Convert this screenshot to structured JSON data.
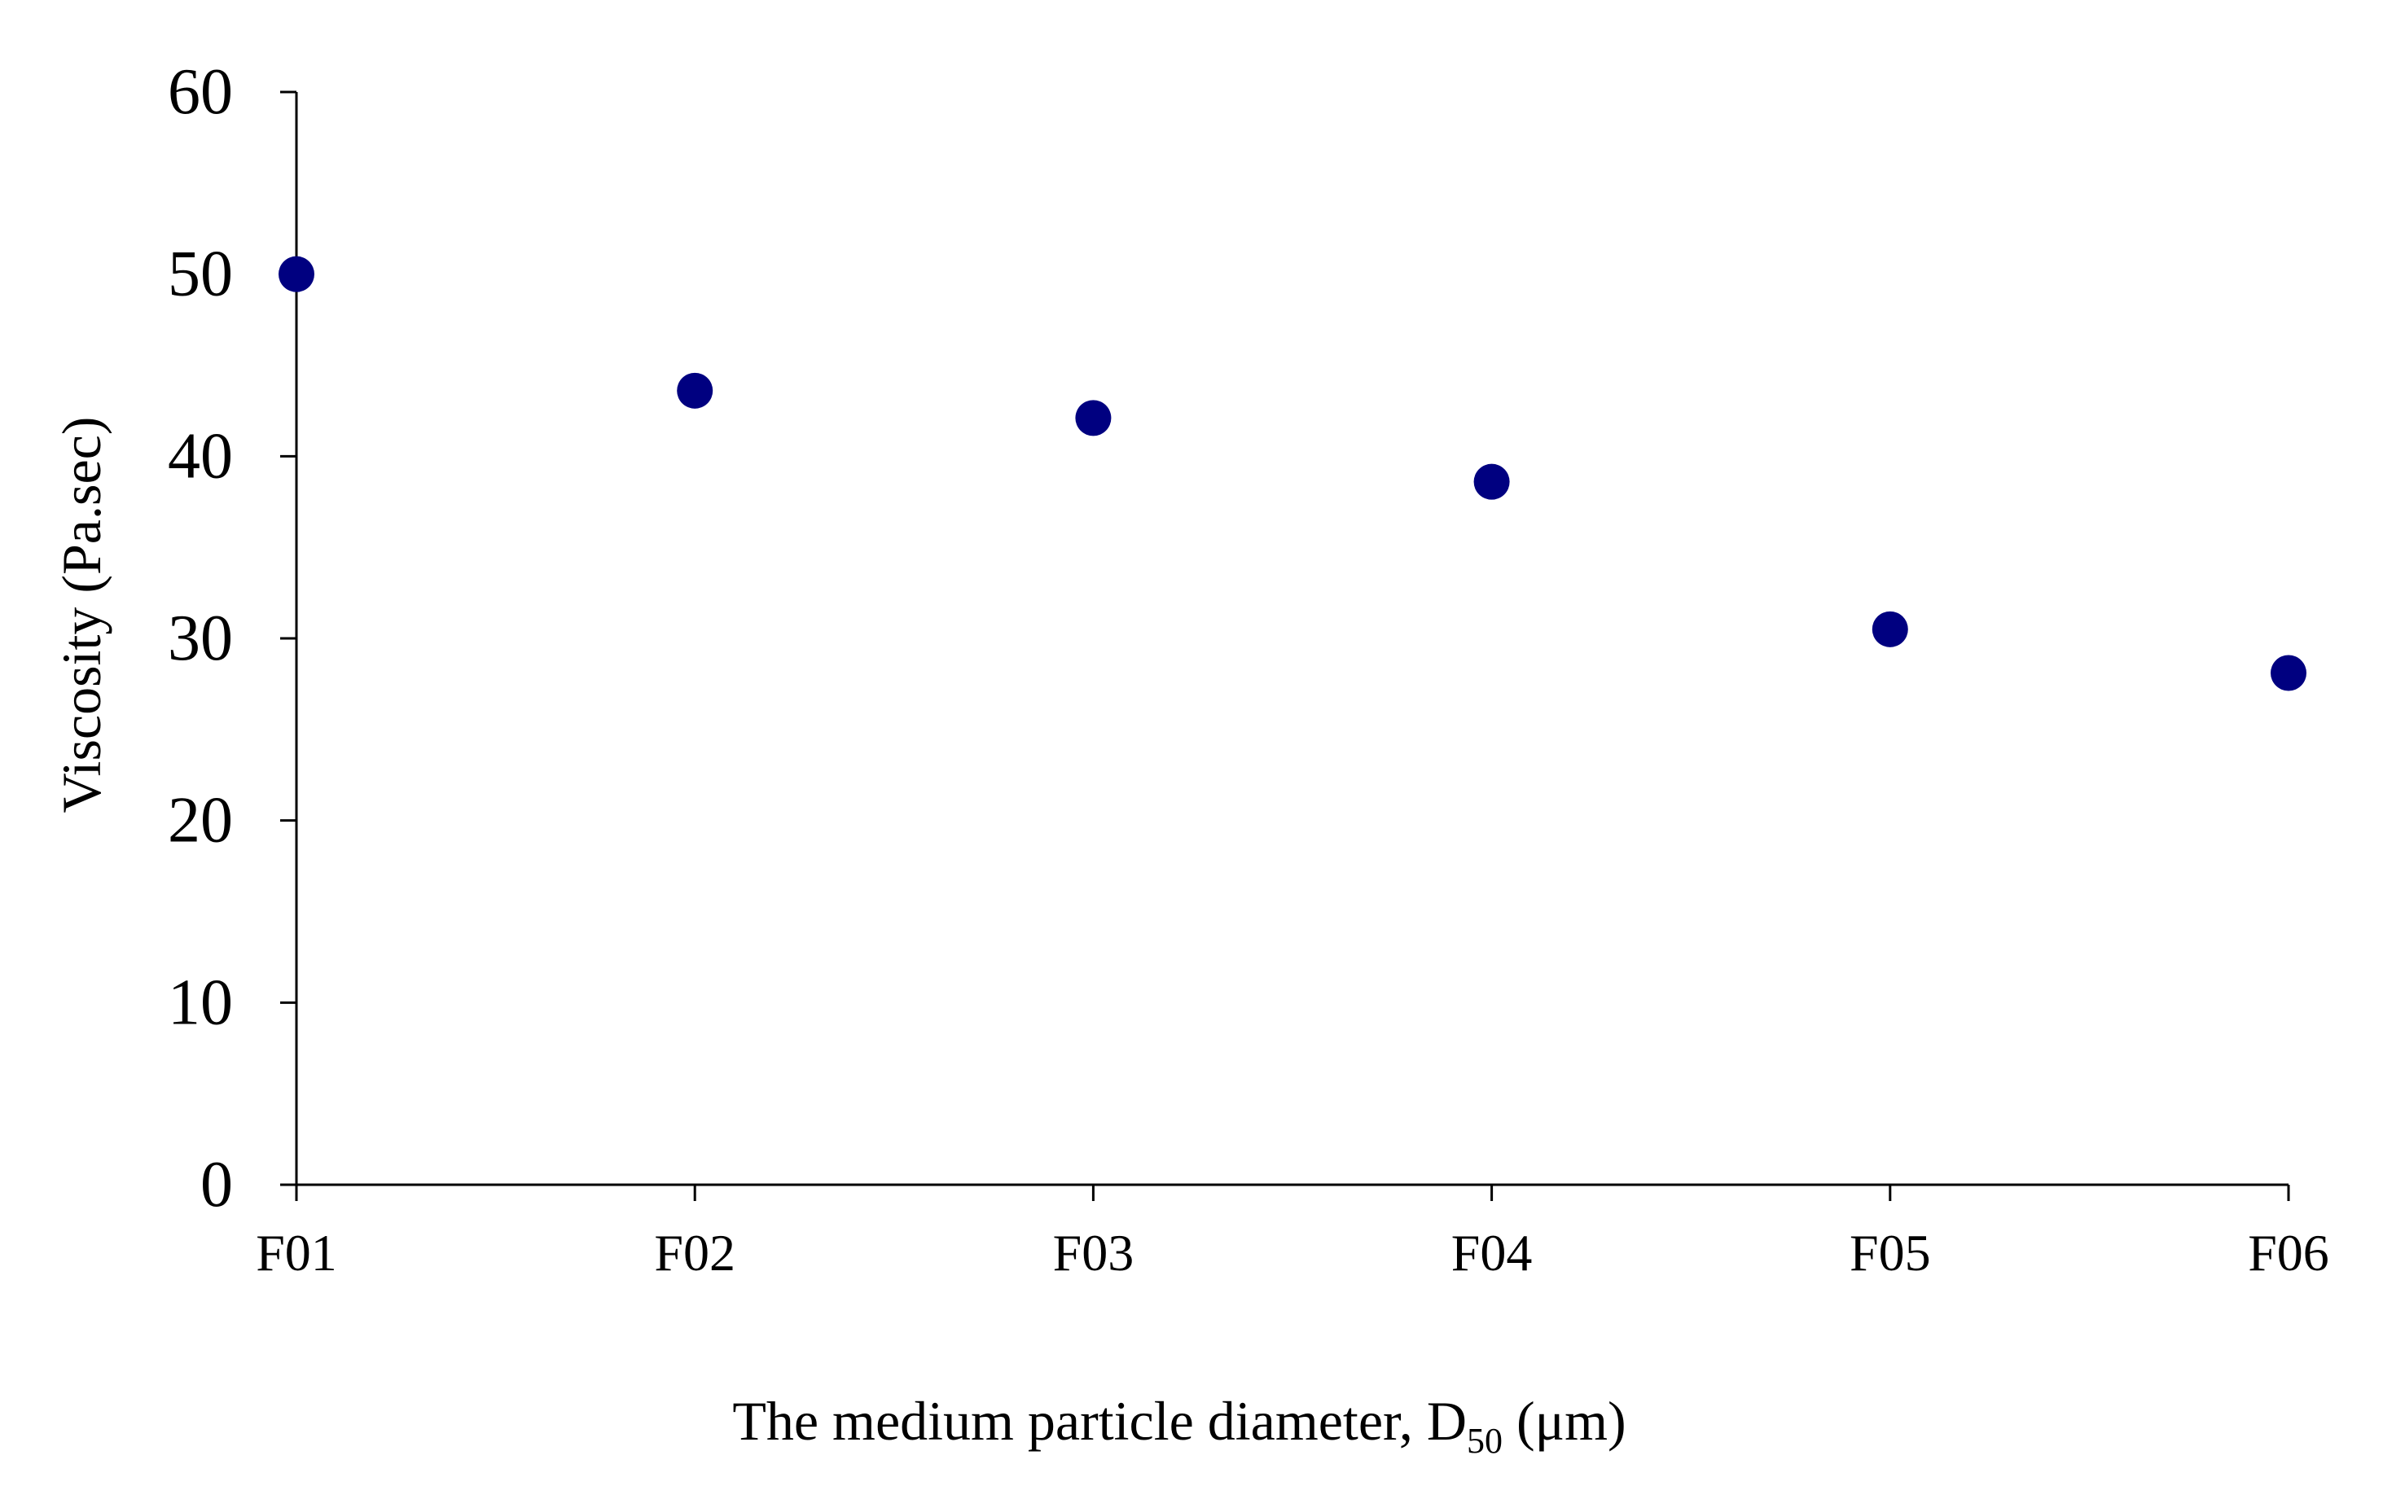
{
  "chart_data": {
    "type": "scatter",
    "categories": [
      "F01",
      "F02",
      "F03",
      "F04",
      "F05",
      "F06"
    ],
    "values": [
      50.0,
      43.6,
      42.1,
      38.6,
      30.5,
      28.1
    ],
    "xlabel": "The medium particle diameter, D50 (μm)",
    "xlabel_parts": {
      "main": "The medium particle diameter, D",
      "subscript": "50",
      "unit": " (μm)"
    },
    "ylabel": "Viscosity (Pa.sec)",
    "ylim": [
      0,
      60
    ],
    "yticks": [
      0,
      10,
      20,
      30,
      40,
      50,
      60
    ],
    "grid": false,
    "marker_color": "#000080"
  }
}
